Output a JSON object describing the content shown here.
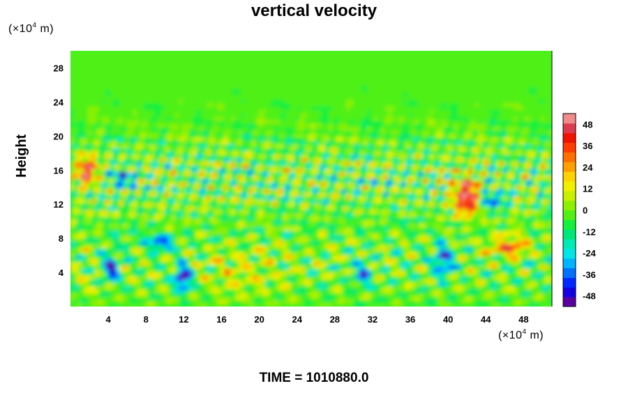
{
  "chart_data": {
    "type": "heatmap",
    "title": "vertical velocity",
    "ylabel": "Height",
    "x_unit": "(×10",
    "x_unit_exp": "4",
    "x_unit_tail": " m)",
    "y_unit": "(×10",
    "y_unit_exp": "4",
    "y_unit_tail": " m)",
    "x_ticks": [
      4,
      8,
      12,
      16,
      20,
      24,
      28,
      32,
      36,
      40,
      44,
      48
    ],
    "y_ticks": [
      4,
      8,
      12,
      16,
      20,
      24,
      28
    ],
    "xlim": [
      0,
      51
    ],
    "ylim": [
      0,
      30
    ],
    "colorbar": {
      "ticks": [
        48,
        36,
        24,
        12,
        0,
        -12,
        -24,
        -36,
        -48
      ],
      "range": [
        -54,
        54
      ]
    },
    "footer": "TIME = 1010880.0"
  },
  "colors": {
    "palette": [
      "#5a00a0",
      "#1400e0",
      "#0028ff",
      "#0070ff",
      "#00b4ff",
      "#00e6e6",
      "#00ebb4",
      "#00e678",
      "#14f03c",
      "#50f014",
      "#8cf000",
      "#c8f000",
      "#f0f000",
      "#ffd200",
      "#ffa000",
      "#ff6e00",
      "#ff3c00",
      "#f01400",
      "#dc3c50",
      "#f08c8c"
    ]
  }
}
